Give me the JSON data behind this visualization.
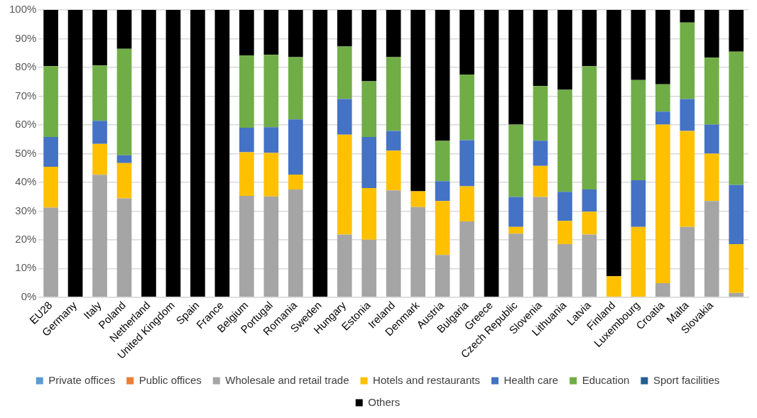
{
  "chart_data": {
    "type": "bar",
    "stacked": true,
    "categories": [
      "EU28",
      "Germany",
      "Italy",
      "Poland",
      "Netherland",
      "United Kingdom",
      "Spain",
      "France",
      "Belgium",
      "Portugal",
      "Romania",
      "Sweden",
      "Hungary",
      "Estonia",
      "Ireland",
      "Denmark",
      "Austria",
      "Bulgaria",
      "Greece",
      "Czech Republic",
      "Slovenia",
      "Lithuania",
      "Latvia",
      "Finland",
      "Luxembourg",
      "Croatia",
      "Malta",
      "Slovakia",
      null
    ],
    "series": [
      {
        "name": "Private offices",
        "color": "#5b9bd5",
        "values": [
          0,
          0,
          0,
          0,
          0,
          0,
          0,
          0,
          0,
          0,
          0,
          0,
          0,
          0,
          0,
          0,
          0,
          0,
          0,
          0,
          0,
          0,
          0,
          0,
          0,
          0,
          0,
          0,
          0
        ]
      },
      {
        "name": "Public offices",
        "color": "#ed7d31",
        "values": [
          0,
          0,
          0,
          0,
          0,
          0,
          0,
          0,
          0,
          0,
          0,
          0,
          0,
          0,
          0,
          0,
          0,
          0,
          0,
          0,
          0,
          0,
          0,
          0,
          0,
          0,
          0,
          0,
          0
        ]
      },
      {
        "name": "Wholesale and retail trade",
        "color": "#a5a5a5",
        "values": [
          31.2,
          0,
          42.6,
          34.4,
          0,
          0,
          0,
          0,
          35.3,
          35.1,
          37.5,
          0,
          21.8,
          20,
          37.2,
          31.4,
          14.7,
          26.4,
          0,
          22.1,
          34.9,
          18.5,
          21.8,
          0,
          0,
          4.9,
          24.5,
          33.5,
          1.5
        ]
      },
      {
        "name": "Hotels and restaurants",
        "color": "#ffc000",
        "values": [
          14.2,
          0,
          10.8,
          12.3,
          0,
          0,
          0,
          0,
          15.2,
          15.1,
          5.2,
          0,
          34.8,
          18,
          13.8,
          5.5,
          18.8,
          12.2,
          0,
          2.4,
          10.8,
          8.1,
          8,
          7.3,
          24.5,
          55.2,
          33.4,
          16.5,
          17
        ]
      },
      {
        "name": "Health care",
        "color": "#4472c4",
        "values": [
          10.4,
          0,
          8,
          2.7,
          0,
          0,
          0,
          0,
          8.5,
          9,
          19.2,
          0,
          12.4,
          17.8,
          6.9,
          0,
          6.9,
          16.1,
          0,
          10.4,
          8.8,
          10.1,
          7.7,
          0,
          16.2,
          4.5,
          11.1,
          10.1,
          20.6
        ]
      },
      {
        "name": "Education",
        "color": "#70ad47",
        "values": [
          24.6,
          0,
          19.3,
          37.1,
          0,
          0,
          0,
          0,
          25.2,
          25.2,
          21.7,
          0,
          18.3,
          19.4,
          25.7,
          0,
          14,
          22.8,
          0,
          25.2,
          19,
          35.5,
          42.9,
          0,
          34.9,
          9.5,
          26.6,
          23.3,
          46.4
        ]
      },
      {
        "name": "Sport facilities",
        "color": "#255e91",
        "values": [
          0,
          0,
          0,
          0,
          0,
          0,
          0,
          0,
          0,
          0,
          0,
          0,
          0,
          0,
          0,
          0,
          0,
          0,
          0,
          0,
          0,
          0,
          0,
          0,
          0,
          0,
          0,
          0,
          0
        ]
      },
      {
        "name": "Others",
        "color": "#000000",
        "values": [
          19.6,
          100,
          19.3,
          13.5,
          100,
          100,
          100,
          100,
          15.8,
          15.6,
          16.4,
          100,
          12.7,
          24.8,
          16.4,
          63.1,
          45.6,
          22.5,
          100,
          39.9,
          26.5,
          27.8,
          19.6,
          92.7,
          24.4,
          25.9,
          4.4,
          16.6,
          14.5
        ]
      }
    ],
    "ylim": [
      0,
      100
    ],
    "yticks": [
      {
        "value": 0,
        "label": "0%"
      },
      {
        "value": 10,
        "label": "10%"
      },
      {
        "value": 20,
        "label": "20%"
      },
      {
        "value": 30,
        "label": "30%"
      },
      {
        "value": 40,
        "label": "40%"
      },
      {
        "value": 50,
        "label": "50%"
      },
      {
        "value": 60,
        "label": "60%"
      },
      {
        "value": 70,
        "label": "70%"
      },
      {
        "value": 80,
        "label": "80%"
      },
      {
        "value": 90,
        "label": "90%"
      },
      {
        "value": 100,
        "label": "100%"
      }
    ],
    "grid": "y",
    "legend": "bottom"
  }
}
